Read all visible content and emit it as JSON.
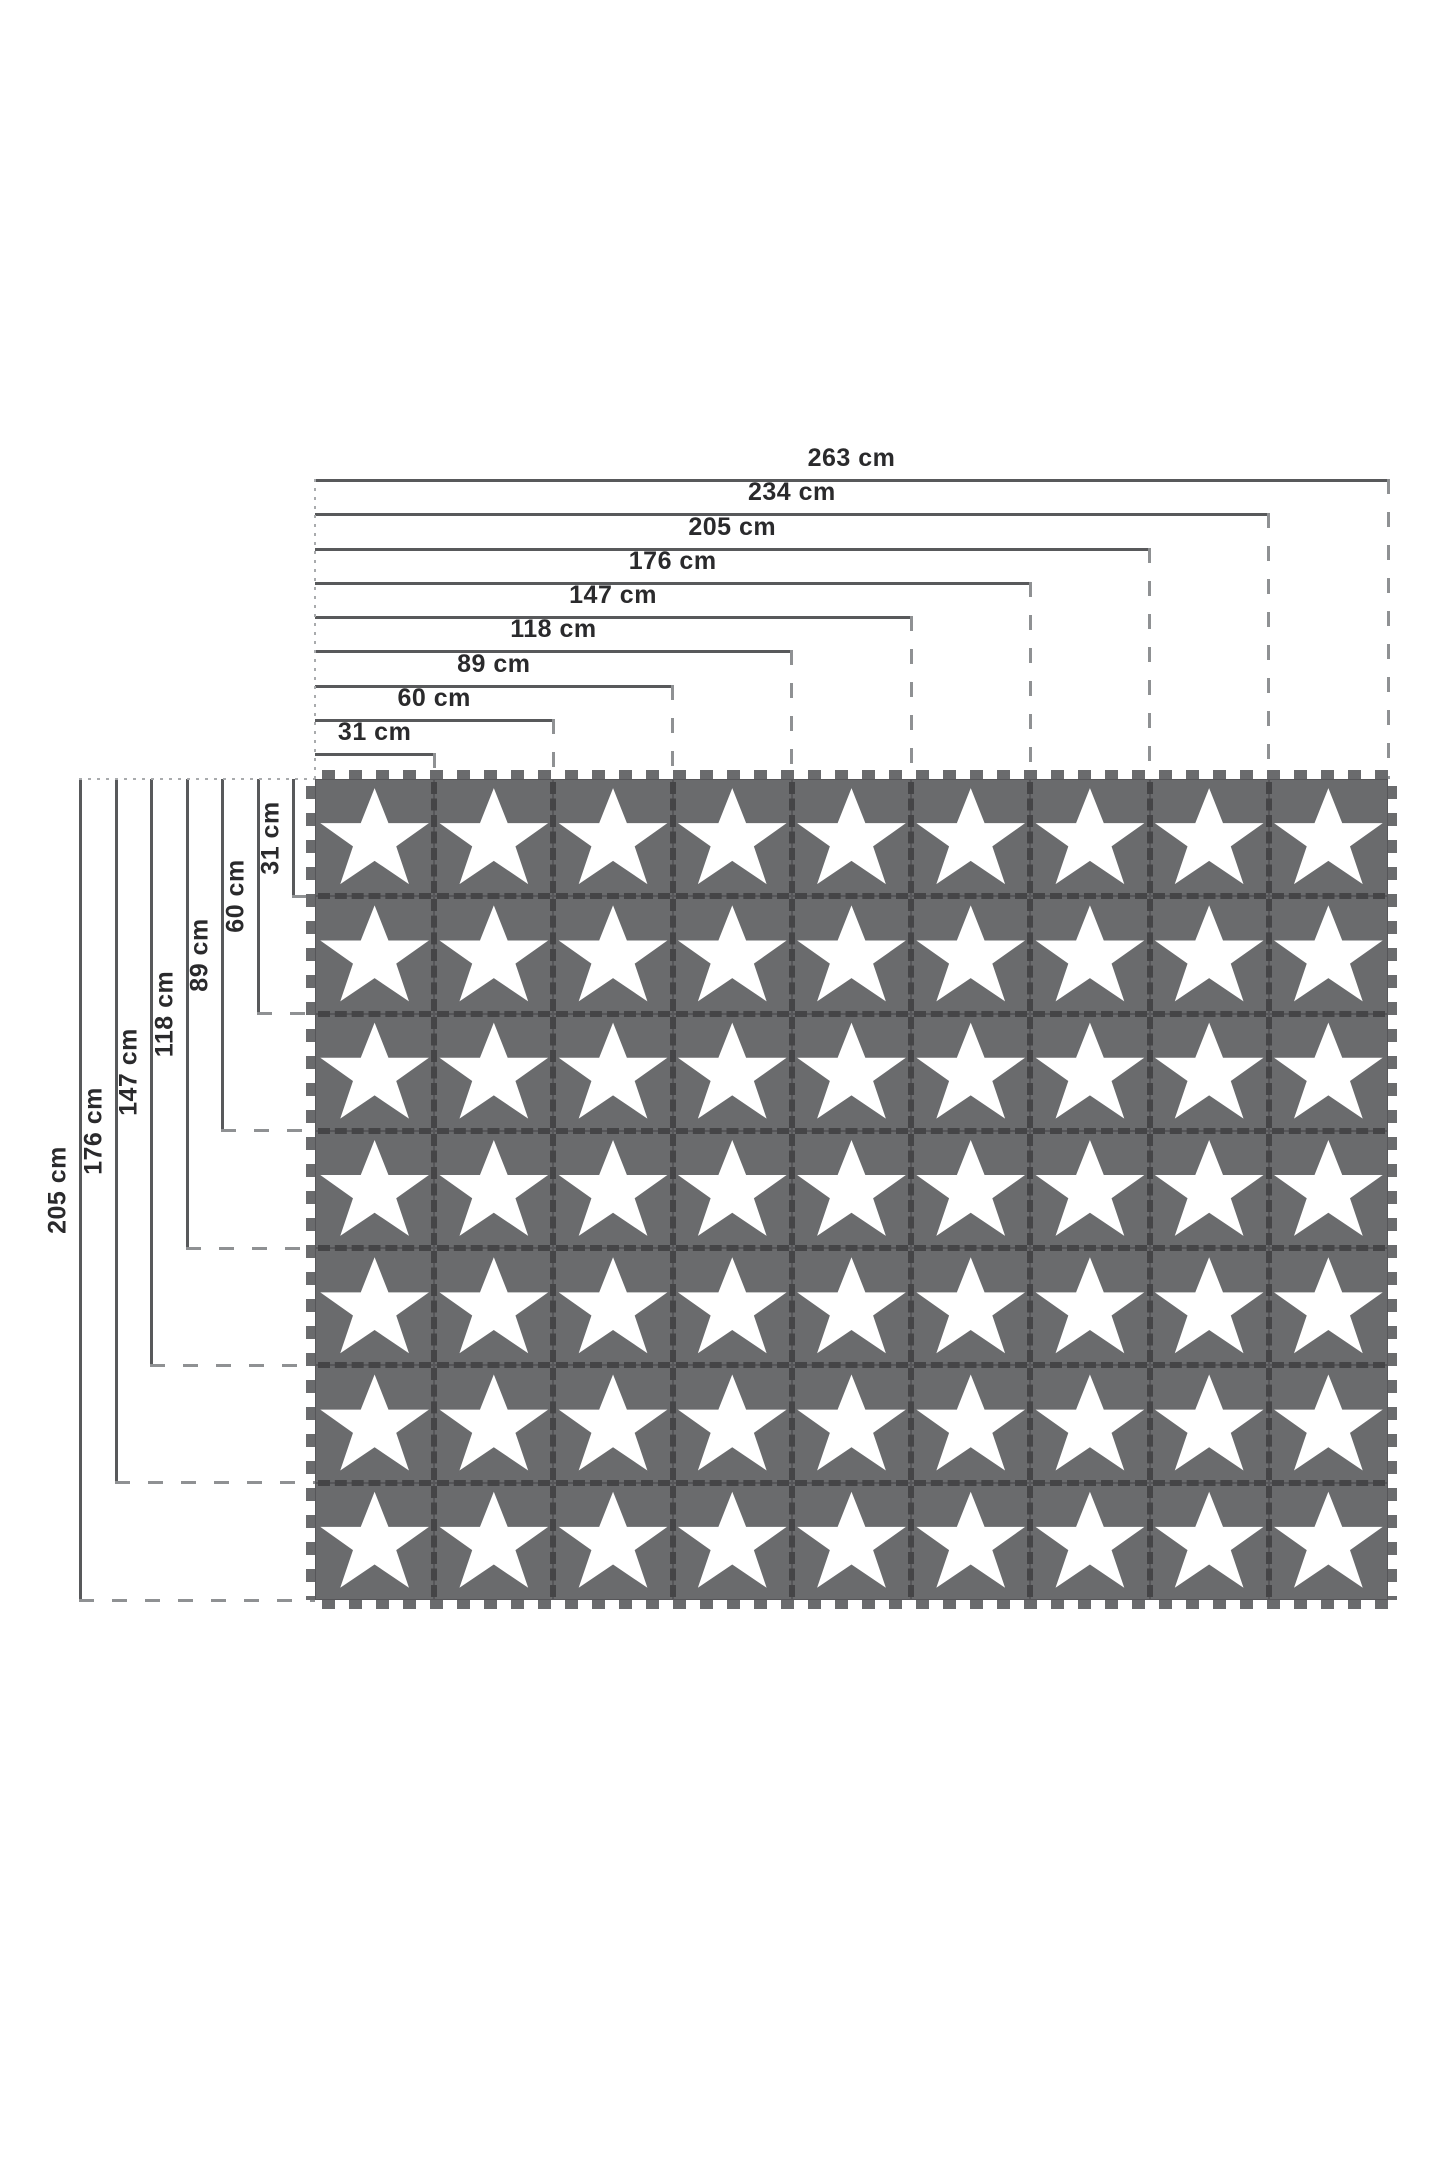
{
  "diagram": {
    "type": "product-dimension-diagram",
    "subject": "interlocking foam puzzle play mat with star tiles",
    "unit": "cm",
    "top_dimensions": [
      {
        "label": "263 cm",
        "value": 263,
        "span_columns": 9
      },
      {
        "label": "234 cm",
        "value": 234,
        "span_columns": 8
      },
      {
        "label": "205 cm",
        "value": 205,
        "span_columns": 7
      },
      {
        "label": "176 cm",
        "value": 176,
        "span_columns": 6
      },
      {
        "label": "147 cm",
        "value": 147,
        "span_columns": 5
      },
      {
        "label": "118 cm",
        "value": 118,
        "span_columns": 4
      },
      {
        "label": "89 cm",
        "value": 89,
        "span_columns": 3
      },
      {
        "label": "60 cm",
        "value": 60,
        "span_columns": 2
      },
      {
        "label": "31 cm",
        "value": 31,
        "span_columns": 1
      }
    ],
    "left_dimensions": [
      {
        "label": "205 cm",
        "value": 205,
        "span_rows": 7
      },
      {
        "label": "176 cm",
        "value": 176,
        "span_rows": 6
      },
      {
        "label": "147 cm",
        "value": 147,
        "span_rows": 5
      },
      {
        "label": "118 cm",
        "value": 118,
        "span_rows": 4
      },
      {
        "label": "89 cm",
        "value": 89,
        "span_rows": 3
      },
      {
        "label": "60 cm",
        "value": 60,
        "span_rows": 2
      },
      {
        "label": "31 cm",
        "value": 31,
        "span_rows": 1
      }
    ],
    "mat": {
      "columns": 9,
      "rows": 7,
      "tile_count": 63,
      "tile_motif": "white-star",
      "colors": {
        "tile": "#6a6b6d",
        "tile_border": "#454547",
        "star": "#ffffff"
      }
    },
    "colors": {
      "background": "#ffffff",
      "dimension_line": "#58595b",
      "extension_dash": "#8f9193",
      "extension_dot": "#a9abad",
      "label_text": "#2a2a2c"
    }
  }
}
